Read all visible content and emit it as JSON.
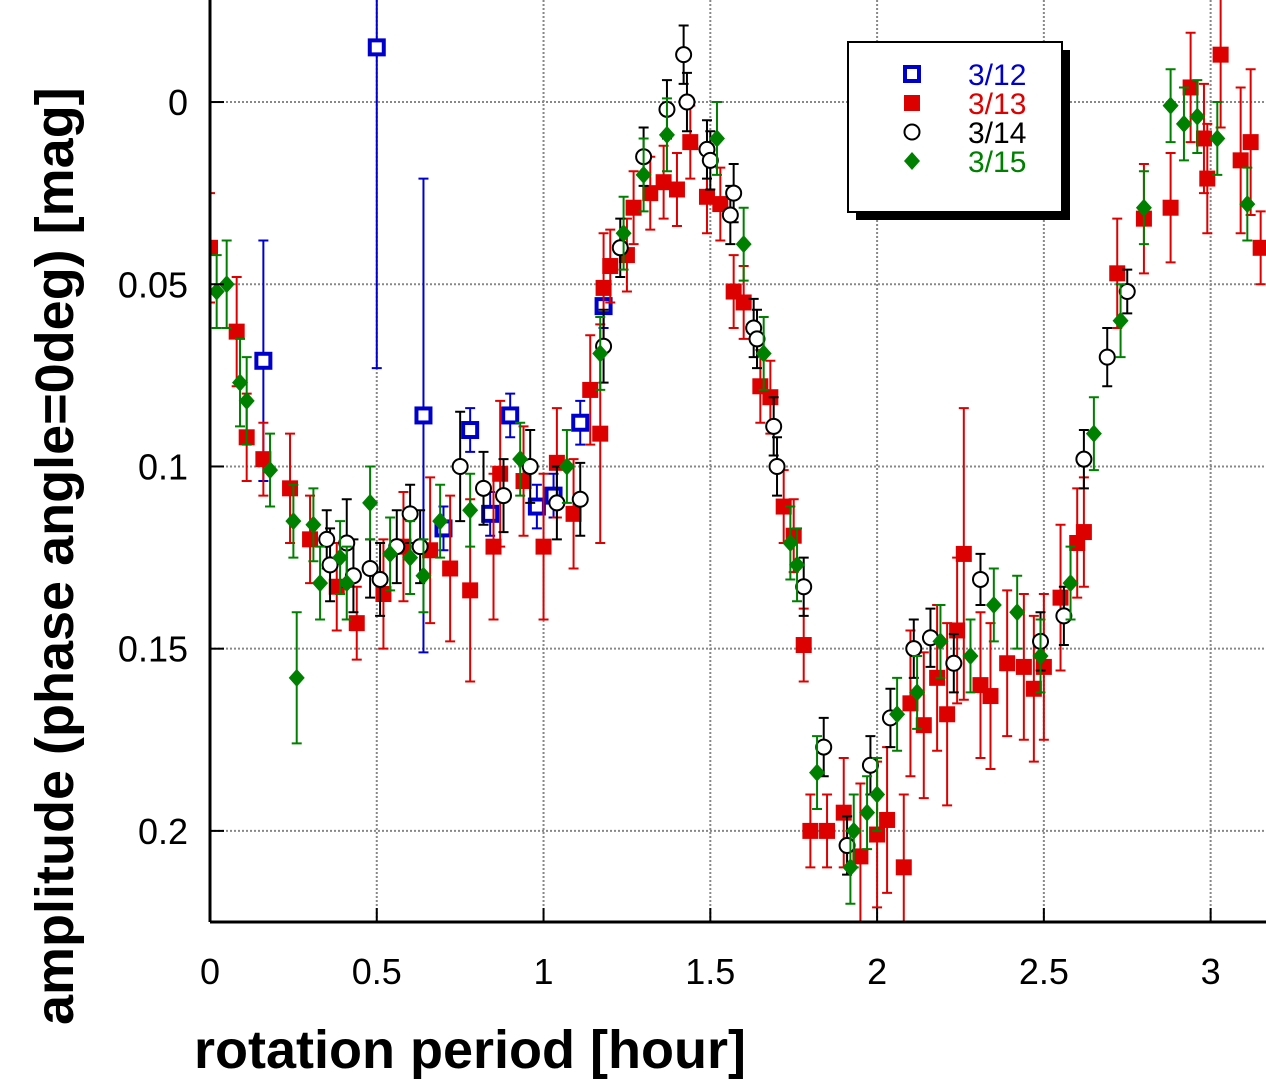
{
  "chart_data": {
    "type": "scatter",
    "xlabel": "rotation period [hour]",
    "ylabel": "amplitude (phase angle=0deg) [mag]",
    "xlim": [
      0,
      3.166
    ],
    "ylim": [
      -0.028,
      0.225
    ],
    "y_inverted": true,
    "grid": true,
    "xticks": [
      0,
      0.5,
      1,
      1.5,
      2,
      2.5,
      3
    ],
    "yticks": [
      0,
      0.05,
      0.1,
      0.15,
      0.2
    ],
    "legend": "upper right",
    "series": [
      {
        "name": "3/12",
        "color": "#0000cc",
        "marker": "open-square",
        "x": [
          0.16,
          0.5,
          0.64,
          0.7,
          0.78,
          0.84,
          0.9,
          0.98,
          1.03,
          1.11,
          1.18
        ],
        "values": [
          0.071,
          -0.015,
          0.086,
          0.117,
          0.09,
          0.113,
          0.086,
          0.111,
          0.108,
          0.088,
          0.056
        ],
        "errors": [
          0.033,
          0.088,
          0.065,
          0.006,
          0.006,
          0.006,
          0.006,
          0.006,
          0.006,
          0.006,
          0.006
        ]
      },
      {
        "name": "3/13",
        "color": "#dd0000",
        "marker": "square",
        "x": [
          0,
          0.08,
          0.11,
          0.16,
          0.24,
          0.3,
          0.38,
          0.44,
          0.52,
          0.58,
          0.66,
          0.72,
          0.78,
          0.85,
          0.87,
          0.94,
          1.0,
          1.04,
          1.09,
          1.14,
          1.17,
          1.18,
          1.2,
          1.25,
          1.27,
          1.32,
          1.36,
          1.4,
          1.44,
          1.49,
          1.53,
          1.57,
          1.6,
          1.65,
          1.68,
          1.72,
          1.75,
          1.78,
          1.8,
          1.85,
          1.9,
          1.95,
          2.0,
          2.03,
          2.08,
          2.1,
          2.14,
          2.18,
          2.21,
          2.24,
          2.26,
          2.31,
          2.34,
          2.39,
          2.44,
          2.47,
          2.5,
          2.55,
          2.6,
          2.62,
          2.72,
          2.8,
          2.88,
          2.94,
          2.98,
          2.99,
          3.03,
          3.09,
          3.12,
          3.15
        ],
        "values": [
          0.04,
          0.063,
          0.092,
          0.098,
          0.106,
          0.12,
          0.133,
          0.143,
          0.135,
          0.122,
          0.123,
          0.128,
          0.134,
          0.122,
          0.102,
          0.104,
          0.122,
          0.099,
          0.113,
          0.079,
          0.091,
          0.051,
          0.045,
          0.042,
          0.029,
          0.025,
          0.022,
          0.024,
          0.011,
          0.026,
          0.028,
          0.052,
          0.055,
          0.078,
          0.081,
          0.111,
          0.119,
          0.149,
          0.2,
          0.2,
          0.195,
          0.207,
          0.201,
          0.197,
          0.21,
          0.165,
          0.171,
          0.158,
          0.168,
          0.145,
          0.124,
          0.16,
          0.163,
          0.154,
          0.155,
          0.161,
          0.155,
          0.136,
          0.121,
          0.118,
          0.047,
          0.032,
          0.029,
          -0.004,
          0.01,
          0.021,
          -0.013,
          0.016,
          0.011,
          0.04
        ],
        "errors": [
          0.015,
          0.015,
          0.012,
          0.01,
          0.015,
          0.012,
          0.012,
          0.01,
          0.015,
          0.015,
          0.02,
          0.02,
          0.025,
          0.02,
          0.02,
          0.015,
          0.02,
          0.015,
          0.015,
          0.015,
          0.03,
          0.015,
          0.01,
          0.01,
          0.01,
          0.01,
          0.01,
          0.01,
          0.01,
          0.01,
          0.01,
          0.01,
          0.01,
          0.01,
          0.01,
          0.01,
          0.01,
          0.01,
          0.01,
          0.01,
          0.015,
          0.02,
          0.02,
          0.02,
          0.02,
          0.02,
          0.02,
          0.02,
          0.025,
          0.02,
          0.04,
          0.02,
          0.02,
          0.02,
          0.02,
          0.02,
          0.02,
          0.02,
          0.015,
          0.015,
          0.015,
          0.015,
          0.015,
          0.015,
          0.015,
          0.015,
          0.02,
          0.02,
          0.02,
          0.01
        ]
      },
      {
        "name": "3/14",
        "color": "#000000",
        "marker": "open-circle",
        "x": [
          0.35,
          0.36,
          0.41,
          0.43,
          0.48,
          0.51,
          0.56,
          0.6,
          0.63,
          0.75,
          0.82,
          0.88,
          0.96,
          1.04,
          1.11,
          1.18,
          1.23,
          1.3,
          1.37,
          1.42,
          1.43,
          1.49,
          1.5,
          1.56,
          1.57,
          1.63,
          1.64,
          1.69,
          1.7,
          1.78,
          1.84,
          1.91,
          1.98,
          2.04,
          2.11,
          2.16,
          2.23,
          2.31,
          2.49,
          2.56,
          2.62,
          2.69,
          2.75
        ],
        "values": [
          0.12,
          0.127,
          0.121,
          0.13,
          0.128,
          0.131,
          0.122,
          0.113,
          0.122,
          0.1,
          0.106,
          0.108,
          0.1,
          0.11,
          0.109,
          0.067,
          0.04,
          0.015,
          0.002,
          -0.013,
          0,
          0.013,
          0.016,
          0.031,
          0.025,
          0.062,
          0.065,
          0.089,
          0.1,
          0.133,
          0.177,
          0.204,
          0.182,
          0.169,
          0.15,
          0.147,
          0.154,
          0.131,
          0.148,
          0.141,
          0.098,
          0.07,
          0.052
        ],
        "errors": [
          0.008,
          0.01,
          0.012,
          0.01,
          0.008,
          0.01,
          0.01,
          0.008,
          0.01,
          0.015,
          0.01,
          0.01,
          0.01,
          0.01,
          0.01,
          0.01,
          0.008,
          0.008,
          0.008,
          0.008,
          0.008,
          0.008,
          0.008,
          0.008,
          0.008,
          0.008,
          0.008,
          0.008,
          0.008,
          0.008,
          0.008,
          0.008,
          0.008,
          0.008,
          0.008,
          0.008,
          0.008,
          0.007,
          0.008,
          0.008,
          0.008,
          0.008,
          0.006
        ]
      },
      {
        "name": "3/15",
        "color": "#008000",
        "marker": "diamond",
        "x": [
          0.02,
          0.05,
          0.09,
          0.11,
          0.18,
          0.25,
          0.26,
          0.31,
          0.33,
          0.39,
          0.41,
          0.48,
          0.54,
          0.6,
          0.64,
          0.69,
          0.78,
          0.93,
          1.07,
          1.17,
          1.24,
          1.3,
          1.37,
          1.52,
          1.6,
          1.66,
          1.74,
          1.76,
          1.82,
          1.92,
          1.93,
          1.97,
          2.0,
          2.06,
          2.12,
          2.19,
          2.28,
          2.35,
          2.42,
          2.49,
          2.58,
          2.65,
          2.73,
          2.8,
          2.88,
          2.92,
          2.96,
          3.02,
          3.11
        ],
        "values": [
          0.052,
          0.05,
          0.077,
          0.082,
          0.101,
          0.115,
          0.158,
          0.116,
          0.132,
          0.125,
          0.132,
          0.11,
          0.124,
          0.125,
          0.13,
          0.115,
          0.112,
          0.098,
          0.1,
          0.069,
          0.036,
          0.02,
          0.009,
          0.01,
          0.039,
          0.069,
          0.121,
          0.127,
          0.184,
          0.21,
          0.2,
          0.195,
          0.19,
          0.168,
          0.162,
          0.148,
          0.152,
          0.138,
          0.14,
          0.152,
          0.132,
          0.091,
          0.06,
          0.029,
          0.001,
          0.006,
          0.004,
          0.01,
          0.028
        ],
        "errors": [
          0.01,
          0.012,
          0.012,
          0.012,
          0.01,
          0.01,
          0.018,
          0.01,
          0.01,
          0.01,
          0.01,
          0.01,
          0.01,
          0.01,
          0.01,
          0.01,
          0.01,
          0.01,
          0.01,
          0.01,
          0.01,
          0.01,
          0.01,
          0.01,
          0.01,
          0.01,
          0.01,
          0.01,
          0.01,
          0.01,
          0.01,
          0.01,
          0.01,
          0.01,
          0.01,
          0.01,
          0.01,
          0.01,
          0.01,
          0.01,
          0.01,
          0.01,
          0.01,
          0.01,
          0.01,
          0.01,
          0.01,
          0.01,
          0.01
        ]
      }
    ]
  }
}
